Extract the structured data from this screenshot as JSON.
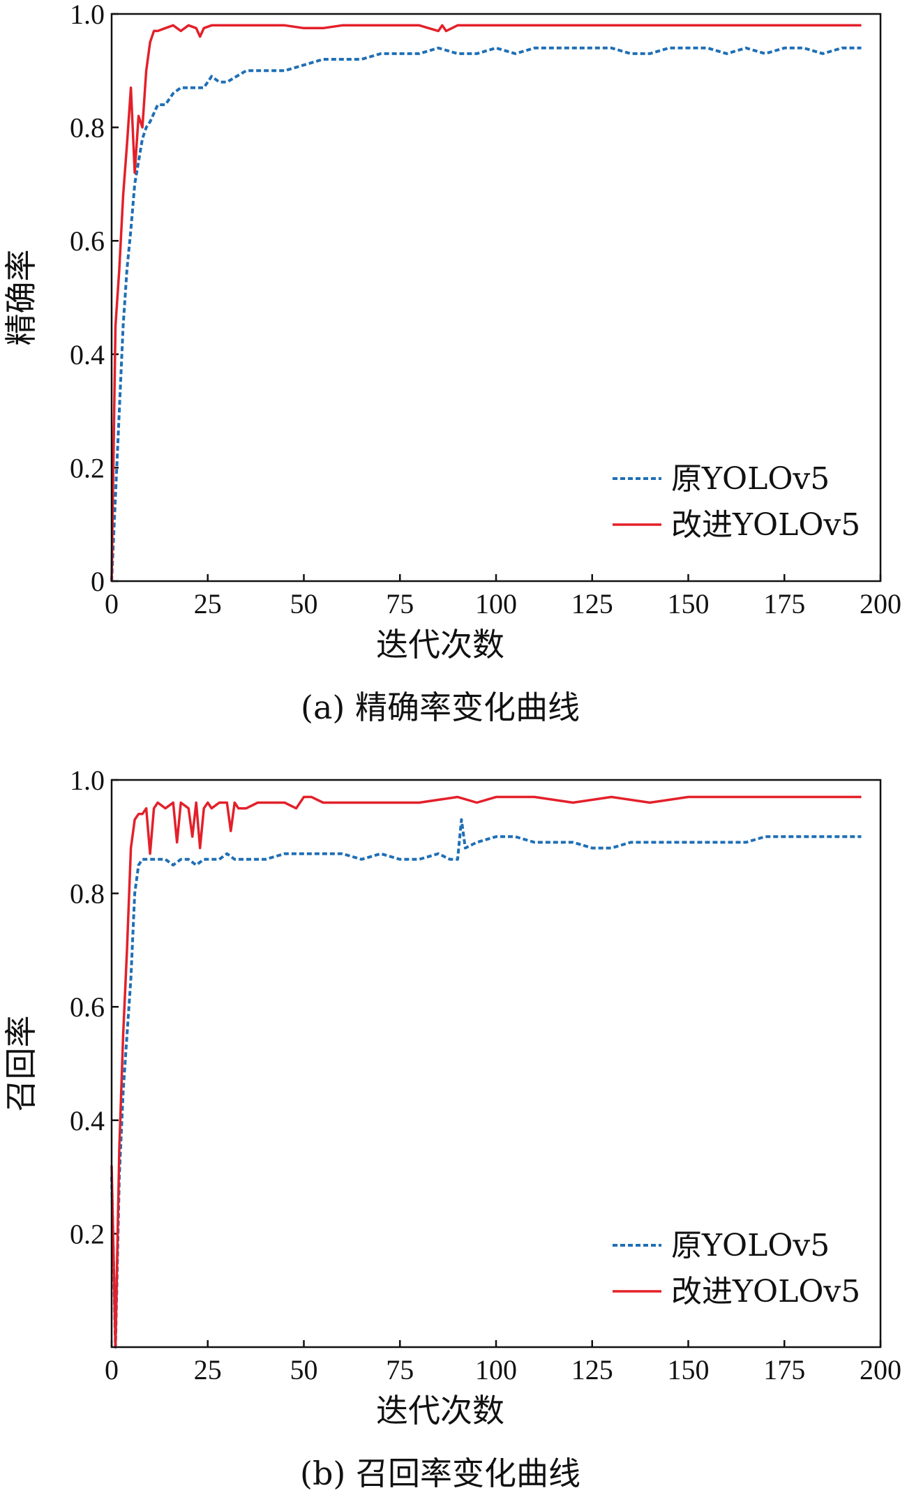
{
  "charts": [
    {
      "caption": "(a) 精确率变化曲线",
      "xlabel": "迭代次数",
      "ylabel": "精确率",
      "xticks": [
        "0",
        "25",
        "50",
        "75",
        "100",
        "125",
        "150",
        "175",
        "200"
      ],
      "yticks": [
        "0",
        "0.2",
        "0.4",
        "0.6",
        "0.8",
        "1.0"
      ],
      "legend": [
        "原YOLOv5",
        "改进YOLOv5"
      ]
    },
    {
      "caption": "(b) 召回率变化曲线",
      "xlabel": "迭代次数",
      "ylabel": "召回率",
      "xticks": [
        "0",
        "25",
        "50",
        "75",
        "100",
        "125",
        "150",
        "175",
        "200"
      ],
      "yticks": [
        "0.2",
        "0.4",
        "0.6",
        "0.8",
        "1.0"
      ],
      "legend": [
        "原YOLOv5",
        "改进YOLOv5"
      ]
    }
  ],
  "colors": {
    "original": "#1f6fb5",
    "improved": "#e3202a"
  },
  "chart_data": [
    {
      "type": "line",
      "xlabel": "迭代次数",
      "ylabel": "精确率",
      "xlim": [
        0,
        200
      ],
      "ylim": [
        0,
        1.0
      ],
      "grid": false,
      "legend_position": "bottom-right",
      "series": [
        {
          "name": "原YOLOv5",
          "style": "dashed",
          "x": [
            0,
            1,
            2,
            3,
            4,
            5,
            6,
            7,
            8,
            9,
            10,
            12,
            14,
            16,
            18,
            20,
            22,
            24,
            26,
            28,
            30,
            35,
            40,
            45,
            50,
            55,
            60,
            65,
            70,
            75,
            80,
            85,
            90,
            95,
            100,
            105,
            110,
            115,
            120,
            125,
            130,
            135,
            140,
            145,
            150,
            155,
            160,
            165,
            170,
            175,
            180,
            185,
            190,
            195
          ],
          "y": [
            0.0,
            0.15,
            0.3,
            0.45,
            0.55,
            0.62,
            0.7,
            0.74,
            0.78,
            0.8,
            0.81,
            0.84,
            0.84,
            0.86,
            0.87,
            0.87,
            0.87,
            0.87,
            0.89,
            0.88,
            0.88,
            0.9,
            0.9,
            0.9,
            0.91,
            0.92,
            0.92,
            0.92,
            0.93,
            0.93,
            0.93,
            0.94,
            0.93,
            0.93,
            0.94,
            0.93,
            0.94,
            0.94,
            0.94,
            0.94,
            0.94,
            0.93,
            0.93,
            0.94,
            0.94,
            0.94,
            0.93,
            0.94,
            0.93,
            0.94,
            0.94,
            0.93,
            0.94,
            0.94
          ]
        },
        {
          "name": "改进YOLOv5",
          "style": "solid",
          "x": [
            0,
            1,
            2,
            3,
            4,
            5,
            6,
            7,
            8,
            9,
            10,
            11,
            12,
            14,
            16,
            18,
            20,
            22,
            23,
            24,
            26,
            28,
            30,
            35,
            40,
            45,
            50,
            55,
            60,
            70,
            80,
            85,
            86,
            87,
            90,
            100,
            110,
            120,
            130,
            140,
            150,
            160,
            170,
            180,
            190,
            195
          ],
          "y": [
            0.0,
            0.45,
            0.55,
            0.68,
            0.77,
            0.87,
            0.72,
            0.82,
            0.8,
            0.9,
            0.95,
            0.97,
            0.97,
            0.975,
            0.98,
            0.97,
            0.98,
            0.975,
            0.96,
            0.975,
            0.98,
            0.98,
            0.98,
            0.98,
            0.98,
            0.98,
            0.975,
            0.975,
            0.98,
            0.98,
            0.98,
            0.97,
            0.98,
            0.97,
            0.98,
            0.98,
            0.98,
            0.98,
            0.98,
            0.98,
            0.98,
            0.98,
            0.98,
            0.98,
            0.98,
            0.98
          ]
        }
      ]
    },
    {
      "type": "line",
      "xlabel": "迭代次数",
      "ylabel": "召回率",
      "xlim": [
        0,
        200
      ],
      "ylim": [
        0,
        1.0
      ],
      "grid": false,
      "legend_position": "bottom-right",
      "series": [
        {
          "name": "原YOLOv5",
          "style": "dashed",
          "x": [
            0,
            1,
            2,
            3,
            4,
            5,
            6,
            7,
            8,
            10,
            12,
            14,
            16,
            18,
            20,
            22,
            24,
            26,
            28,
            30,
            32,
            35,
            40,
            45,
            50,
            55,
            60,
            65,
            70,
            75,
            80,
            85,
            88,
            90,
            91,
            92,
            95,
            100,
            105,
            110,
            115,
            120,
            125,
            130,
            135,
            140,
            145,
            150,
            155,
            160,
            165,
            170,
            175,
            180,
            185,
            190,
            195
          ],
          "y": [
            0.3,
            0.0,
            0.3,
            0.45,
            0.55,
            0.65,
            0.8,
            0.85,
            0.86,
            0.86,
            0.86,
            0.86,
            0.85,
            0.86,
            0.86,
            0.85,
            0.86,
            0.86,
            0.86,
            0.87,
            0.86,
            0.86,
            0.86,
            0.87,
            0.87,
            0.87,
            0.87,
            0.86,
            0.87,
            0.86,
            0.86,
            0.87,
            0.86,
            0.86,
            0.93,
            0.88,
            0.89,
            0.9,
            0.9,
            0.89,
            0.89,
            0.89,
            0.88,
            0.88,
            0.89,
            0.89,
            0.89,
            0.89,
            0.89,
            0.89,
            0.89,
            0.9,
            0.9,
            0.9,
            0.9,
            0.9,
            0.9
          ]
        },
        {
          "name": "改进YOLOv5",
          "style": "solid",
          "x": [
            0,
            1,
            2,
            3,
            4,
            5,
            6,
            7,
            8,
            9,
            10,
            11,
            12,
            14,
            16,
            17,
            18,
            20,
            21,
            22,
            23,
            24,
            25,
            26,
            28,
            30,
            31,
            32,
            33,
            35,
            38,
            40,
            45,
            48,
            50,
            52,
            55,
            60,
            70,
            80,
            90,
            95,
            100,
            110,
            120,
            130,
            140,
            150,
            160,
            170,
            180,
            190,
            195
          ],
          "y": [
            0.32,
            0.0,
            0.35,
            0.55,
            0.7,
            0.88,
            0.93,
            0.94,
            0.94,
            0.95,
            0.87,
            0.95,
            0.96,
            0.95,
            0.96,
            0.89,
            0.96,
            0.95,
            0.9,
            0.96,
            0.88,
            0.95,
            0.96,
            0.95,
            0.96,
            0.96,
            0.91,
            0.96,
            0.95,
            0.95,
            0.96,
            0.96,
            0.96,
            0.95,
            0.97,
            0.97,
            0.96,
            0.96,
            0.96,
            0.96,
            0.97,
            0.96,
            0.97,
            0.97,
            0.96,
            0.97,
            0.96,
            0.97,
            0.97,
            0.97,
            0.97,
            0.97,
            0.97
          ]
        }
      ]
    }
  ]
}
